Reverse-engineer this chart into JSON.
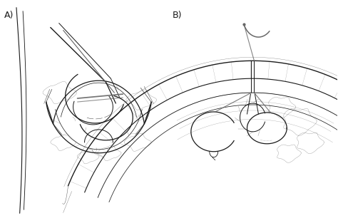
{
  "fig_width": 4.74,
  "fig_height": 3.06,
  "dpi": 100,
  "bg_color": "#ffffff",
  "line_color": "#1a1a1a",
  "gray_line": "#666666",
  "gray_light": "#aaaaaa",
  "label_A": "A)",
  "label_B": "B)",
  "lw_main": 0.9,
  "lw_thin": 0.5,
  "lw_thick": 1.3
}
